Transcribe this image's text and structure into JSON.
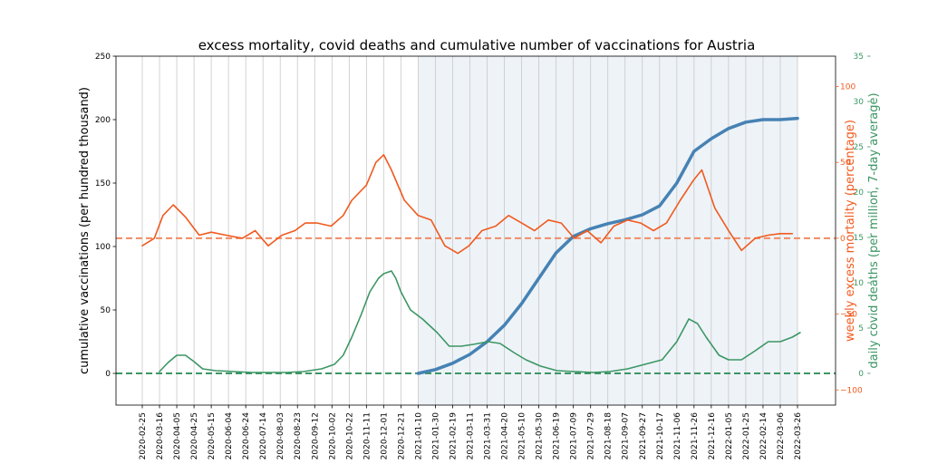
{
  "chart_data": {
    "type": "line",
    "title": "excess mortality, covid deaths and cumulative number of vaccinations for Austria",
    "x_ticks": [
      "2020-02-25",
      "2020-03-16",
      "2020-04-05",
      "2020-04-25",
      "2020-05-15",
      "2020-06-04",
      "2020-06-24",
      "2020-07-14",
      "2020-08-03",
      "2020-08-23",
      "2020-09-12",
      "2020-10-02",
      "2020-10-22",
      "2020-11-11",
      "2020-12-01",
      "2020-12-21",
      "2021-01-10",
      "2021-01-30",
      "2021-02-19",
      "2021-03-11",
      "2021-03-31",
      "2021-04-20",
      "2021-05-10",
      "2021-05-30",
      "2021-06-19",
      "2021-07-09",
      "2021-07-29",
      "2021-08-18",
      "2021-09-07",
      "2021-09-27",
      "2021-10-17",
      "2021-11-06",
      "2021-11-26",
      "2021-12-16",
      "2022-01-05",
      "2022-01-25",
      "2022-02-14",
      "2022-03-06",
      "2022-03-26"
    ],
    "shaded_region": [
      "2021-01-10",
      "2022-03-26"
    ],
    "grid": "vertical",
    "axes": {
      "left": {
        "label": "cumulative vaccinations (per hundred thousand)",
        "ylim": [
          -25,
          250
        ],
        "ticks": [
          "0",
          "50",
          "100",
          "150",
          "200",
          "250"
        ],
        "tick_values": [
          0,
          50,
          100,
          150,
          200,
          250
        ],
        "color": "#000000"
      },
      "right_inner": {
        "label": "weekly excess mortality (percentage)",
        "ylim": [
          -110,
          120
        ],
        "ticks": [
          "−100",
          "−50",
          "0",
          "50",
          "100"
        ],
        "tick_values": [
          -100,
          -50,
          0,
          50,
          100
        ],
        "color": "#f05a1e"
      },
      "right_outer": {
        "label": "daily covid deaths (per million, 7-day average)",
        "ylim": [
          -3.5,
          35
        ],
        "ticks": [
          "0",
          "5",
          "10",
          "15",
          "20",
          "25",
          "30",
          "35"
        ],
        "tick_values": [
          0,
          5,
          10,
          15,
          20,
          25,
          30,
          35
        ],
        "color": "#3c9664"
      }
    },
    "series": [
      {
        "axis": "left",
        "color": "#4682b4",
        "x": [
          "2021-01-10",
          "2021-01-30",
          "2021-02-19",
          "2021-03-11",
          "2021-03-31",
          "2021-04-20",
          "2021-05-10",
          "2021-05-30",
          "2021-06-19",
          "2021-07-09",
          "2021-07-29",
          "2021-08-18",
          "2021-09-07",
          "2021-09-27",
          "2021-10-17",
          "2021-11-06",
          "2021-11-26",
          "2021-12-16",
          "2022-01-05",
          "2022-01-25",
          "2022-02-14",
          "2022-03-06",
          "2022-03-26"
        ],
        "y": [
          0,
          3,
          8,
          15,
          25,
          38,
          55,
          75,
          95,
          108,
          114,
          118,
          121,
          125,
          132,
          150,
          175,
          185,
          193,
          198,
          200,
          200,
          201
        ]
      },
      {
        "axis": "right_inner",
        "color": "#f05a1e",
        "x": [
          "2020-02-25",
          "2020-03-10",
          "2020-03-20",
          "2020-04-01",
          "2020-04-15",
          "2020-05-01",
          "2020-05-15",
          "2020-06-01",
          "2020-06-20",
          "2020-07-05",
          "2020-07-20",
          "2020-08-05",
          "2020-08-20",
          "2020-09-01",
          "2020-09-15",
          "2020-10-01",
          "2020-10-15",
          "2020-10-25",
          "2020-11-11",
          "2020-11-22",
          "2020-12-01",
          "2020-12-10",
          "2020-12-25",
          "2021-01-10",
          "2021-01-25",
          "2021-02-10",
          "2021-02-25",
          "2021-03-10",
          "2021-03-25",
          "2021-04-10",
          "2021-04-25",
          "2021-05-10",
          "2021-05-25",
          "2021-06-10",
          "2021-06-25",
          "2021-07-10",
          "2021-07-25",
          "2021-08-10",
          "2021-08-25",
          "2021-09-10",
          "2021-09-25",
          "2021-10-10",
          "2021-10-25",
          "2021-11-10",
          "2021-11-25",
          "2021-12-05",
          "2021-12-20",
          "2022-01-05",
          "2022-01-20",
          "2022-02-05",
          "2022-02-20",
          "2022-03-06",
          "2022-03-20"
        ],
        "y": [
          -5,
          0,
          15,
          22,
          14,
          2,
          4,
          2,
          0,
          5,
          -5,
          2,
          5,
          10,
          10,
          8,
          15,
          25,
          35,
          50,
          55,
          45,
          25,
          15,
          12,
          -5,
          -10,
          -5,
          5,
          8,
          15,
          10,
          5,
          12,
          10,
          0,
          5,
          -3,
          8,
          12,
          10,
          5,
          10,
          25,
          38,
          45,
          20,
          5,
          -8,
          0,
          2,
          3,
          3
        ]
      },
      {
        "axis": "right_outer",
        "color": "#3c9664",
        "x": [
          "2020-03-16",
          "2020-03-26",
          "2020-04-05",
          "2020-04-15",
          "2020-04-25",
          "2020-05-05",
          "2020-05-20",
          "2020-06-10",
          "2020-07-01",
          "2020-07-20",
          "2020-08-10",
          "2020-08-30",
          "2020-09-20",
          "2020-10-05",
          "2020-10-15",
          "2020-10-25",
          "2020-11-05",
          "2020-11-15",
          "2020-11-25",
          "2020-12-01",
          "2020-12-10",
          "2020-12-15",
          "2020-12-21",
          "2021-01-01",
          "2021-01-15",
          "2021-02-01",
          "2021-02-15",
          "2021-03-01",
          "2021-03-15",
          "2021-04-01",
          "2021-04-15",
          "2021-05-01",
          "2021-05-15",
          "2021-06-01",
          "2021-06-20",
          "2021-07-10",
          "2021-08-01",
          "2021-08-20",
          "2021-09-10",
          "2021-09-30",
          "2021-10-20",
          "2021-11-06",
          "2021-11-20",
          "2021-11-30",
          "2021-12-10",
          "2021-12-25",
          "2022-01-05",
          "2022-01-20",
          "2022-02-05",
          "2022-02-20",
          "2022-03-06",
          "2022-03-20",
          "2022-03-29"
        ],
        "y": [
          0.2,
          1.2,
          2.0,
          2.0,
          1.3,
          0.5,
          0.3,
          0.2,
          0.1,
          0.1,
          0.1,
          0.2,
          0.5,
          1.0,
          2.0,
          4.0,
          6.5,
          9.0,
          10.5,
          11.0,
          11.3,
          10.5,
          9.0,
          7.0,
          6.0,
          4.5,
          3.0,
          3.0,
          3.2,
          3.5,
          3.3,
          2.3,
          1.5,
          0.8,
          0.3,
          0.2,
          0.1,
          0.2,
          0.5,
          1.0,
          1.5,
          3.5,
          6.0,
          5.5,
          4.0,
          2.0,
          1.5,
          1.5,
          2.5,
          3.5,
          3.5,
          4.0,
          4.5
        ]
      }
    ],
    "reference_lines": [
      {
        "axis": "right_inner",
        "y": 0,
        "color": "#f08c64",
        "style": "dashed"
      },
      {
        "axis": "right_outer",
        "y": 0,
        "color": "#3c9664",
        "style": "dashed"
      }
    ]
  }
}
